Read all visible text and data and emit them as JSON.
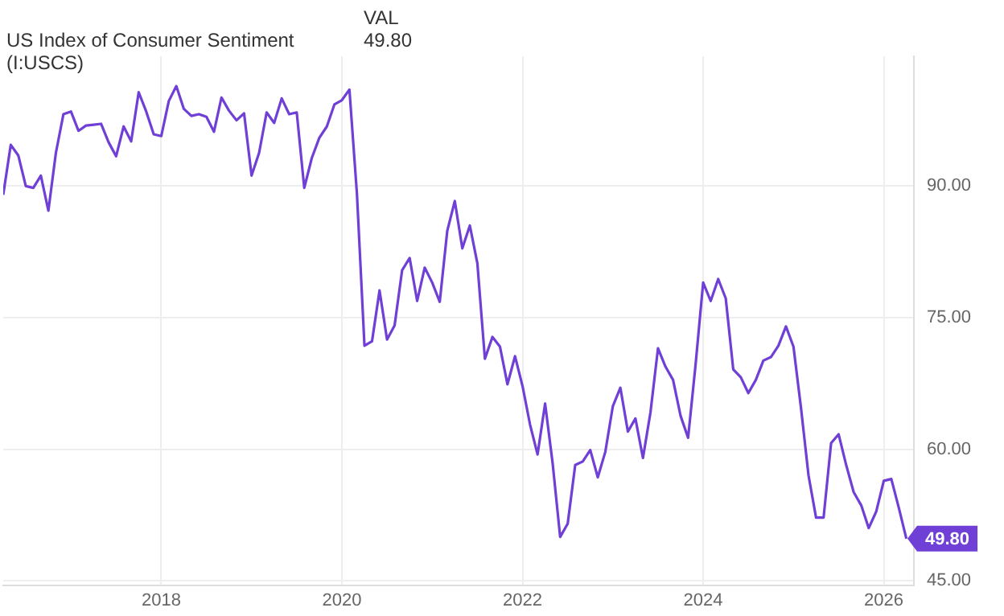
{
  "chart_data": {
    "type": "line",
    "x": [
      "2016-04",
      "2016-05",
      "2016-06",
      "2016-07",
      "2016-08",
      "2016-09",
      "2016-10",
      "2016-11",
      "2016-12",
      "2017-01",
      "2017-02",
      "2017-03",
      "2017-04",
      "2017-05",
      "2017-06",
      "2017-07",
      "2017-08",
      "2017-09",
      "2017-10",
      "2017-11",
      "2017-12",
      "2018-01",
      "2018-02",
      "2018-03",
      "2018-04",
      "2018-05",
      "2018-06",
      "2018-07",
      "2018-08",
      "2018-09",
      "2018-10",
      "2018-11",
      "2018-12",
      "2019-01",
      "2019-02",
      "2019-03",
      "2019-04",
      "2019-05",
      "2019-06",
      "2019-07",
      "2019-08",
      "2019-09",
      "2019-10",
      "2019-11",
      "2019-12",
      "2020-01",
      "2020-02",
      "2020-03",
      "2020-04",
      "2020-05",
      "2020-06",
      "2020-07",
      "2020-08",
      "2020-09",
      "2020-10",
      "2020-11",
      "2020-12",
      "2021-01",
      "2021-02",
      "2021-03",
      "2021-04",
      "2021-05",
      "2021-06",
      "2021-07",
      "2021-08",
      "2021-09",
      "2021-10",
      "2021-11",
      "2021-12",
      "2022-01",
      "2022-02",
      "2022-03",
      "2022-04",
      "2022-05",
      "2022-06",
      "2022-07",
      "2022-08",
      "2022-09",
      "2022-10",
      "2022-11",
      "2022-12",
      "2023-01",
      "2023-02",
      "2023-03",
      "2023-04",
      "2023-05",
      "2023-06",
      "2023-07",
      "2023-08",
      "2023-09",
      "2023-10",
      "2023-11",
      "2023-12",
      "2024-01",
      "2024-02",
      "2024-03",
      "2024-04",
      "2024-05",
      "2024-06",
      "2024-07",
      "2024-08",
      "2024-09",
      "2024-10",
      "2024-11",
      "2024-12",
      "2025-01",
      "2025-02",
      "2025-03",
      "2025-04",
      "2025-05",
      "2025-06",
      "2025-07",
      "2025-08",
      "2025-09",
      "2025-10",
      "2025-11",
      "2025-12",
      "2026-01",
      "2026-02",
      "2026-03",
      "2026-04"
    ],
    "series": [
      {
        "name": "US Index of Consumer Sentiment (I:USCS)",
        "color": "#6f3fd6",
        "values": [
          89.0,
          94.7,
          93.5,
          90.0,
          89.8,
          91.2,
          87.2,
          93.8,
          98.2,
          98.5,
          96.3,
          96.9,
          97.0,
          97.1,
          95.0,
          93.4,
          96.8,
          95.1,
          100.7,
          98.5,
          95.9,
          95.7,
          99.7,
          101.4,
          98.8,
          98.0,
          98.2,
          97.9,
          96.2,
          100.1,
          98.6,
          97.5,
          98.3,
          91.2,
          93.8,
          98.4,
          97.2,
          100.0,
          98.2,
          98.4,
          89.8,
          93.2,
          95.5,
          96.8,
          99.3,
          99.8,
          101.0,
          89.1,
          71.8,
          72.3,
          78.1,
          72.5,
          74.1,
          80.4,
          81.8,
          76.9,
          80.7,
          79.0,
          76.8,
          84.9,
          88.3,
          82.9,
          85.5,
          81.2,
          70.3,
          72.8,
          71.7,
          67.4,
          70.6,
          67.2,
          62.8,
          59.4,
          65.2,
          58.4,
          50.0,
          51.5,
          58.2,
          58.6,
          59.9,
          56.8,
          59.7,
          64.9,
          67.0,
          62.0,
          63.5,
          59.0,
          64.2,
          71.5,
          69.4,
          67.9,
          63.8,
          61.3,
          69.7,
          79.0,
          76.9,
          79.4,
          77.2,
          69.1,
          68.2,
          66.4,
          67.9,
          70.1,
          70.5,
          71.8,
          74.0,
          71.7,
          64.7,
          57.0,
          52.2,
          52.2,
          60.7,
          61.7,
          58.2,
          55.1,
          53.6,
          51.0,
          52.9,
          56.4,
          56.6,
          53.3,
          49.8
        ],
        "value_labels": [
          null,
          null,
          null,
          null,
          null,
          null,
          null,
          null,
          null,
          null,
          null,
          null,
          null,
          null,
          null,
          null,
          null,
          null,
          null,
          null,
          null,
          null,
          null,
          null,
          null,
          null,
          null,
          null,
          null,
          null,
          null,
          null,
          null,
          null,
          null,
          null,
          null,
          null,
          null,
          null,
          null,
          null,
          null,
          null,
          null,
          null,
          null,
          null,
          null,
          null,
          null,
          null,
          null,
          null,
          null,
          null,
          null,
          null,
          null,
          null,
          null,
          null,
          null,
          null,
          null,
          null,
          null,
          null,
          null,
          null,
          null,
          null,
          null,
          null,
          null,
          null,
          null,
          null,
          null,
          null,
          null,
          null,
          null,
          null,
          null,
          null,
          null,
          null,
          null,
          null,
          null,
          null,
          null,
          null,
          null,
          null,
          null,
          null,
          null,
          null,
          null,
          null,
          null,
          null,
          null,
          null,
          null,
          null,
          null,
          null,
          null,
          null,
          null,
          null,
          null,
          null,
          null,
          null,
          null,
          null,
          "49.80"
        ]
      }
    ],
    "xlim": [
      "2016-04",
      "2026-05"
    ],
    "xticks": [
      {
        "value": "2018-01",
        "label": "2018"
      },
      {
        "value": "2020-01",
        "label": "2020"
      },
      {
        "value": "2022-01",
        "label": "2022"
      },
      {
        "value": "2024-01",
        "label": "2024"
      },
      {
        "value": "2026-01",
        "label": "2026"
      }
    ],
    "ylim": [
      44.5,
      104.8
    ],
    "yticks": [
      {
        "value": 45,
        "label": "45.00"
      },
      {
        "value": 60,
        "label": "60.00"
      },
      {
        "value": 75,
        "label": "75.00"
      },
      {
        "value": 90,
        "label": "90.00"
      }
    ],
    "grid": true,
    "legend": "top left",
    "marker": "none",
    "line_style": "solid",
    "annotations": [
      "VAL",
      "49.80"
    ]
  }
}
